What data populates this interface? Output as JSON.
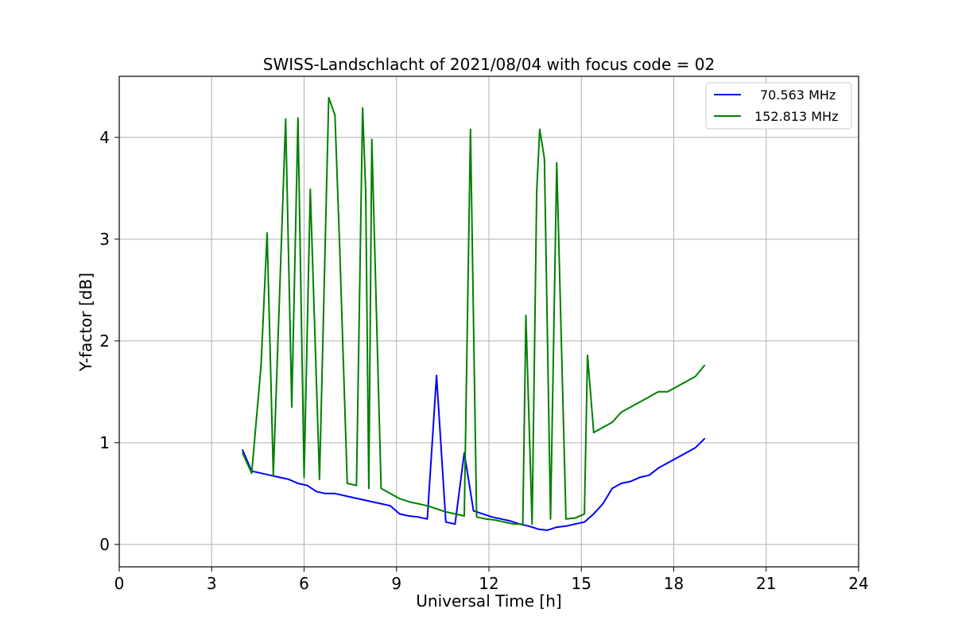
{
  "chart_data": {
    "type": "line",
    "title": "SWISS-Landschlacht of 2021/08/04 with focus code = 02",
    "xlabel": "Universal Time [h]",
    "ylabel": "Y-factor [dB]",
    "xlim": [
      0,
      24
    ],
    "ylim": [
      -0.22,
      4.6
    ],
    "xticks": [
      0,
      3,
      6,
      9,
      12,
      15,
      18,
      21,
      24
    ],
    "yticks": [
      0,
      1,
      2,
      3,
      4
    ],
    "grid": true,
    "legend_position": "top-right",
    "series": [
      {
        "name": "70.563 MHz",
        "color": "#0000ff",
        "x": [
          4.0,
          4.3,
          4.6,
          4.9,
          5.2,
          5.5,
          5.8,
          6.1,
          6.4,
          6.7,
          7.0,
          7.3,
          7.6,
          7.9,
          8.2,
          8.5,
          8.8,
          9.1,
          9.4,
          9.7,
          10.0,
          10.3,
          10.6,
          10.9,
          11.2,
          11.5,
          11.8,
          12.1,
          12.4,
          12.7,
          13.0,
          13.3,
          13.6,
          13.9,
          14.2,
          14.5,
          14.8,
          15.1,
          15.4,
          15.7,
          16.0,
          16.3,
          16.6,
          16.9,
          17.2,
          17.5,
          17.8,
          18.1,
          18.4,
          18.7,
          19.0
        ],
        "values": [
          0.93,
          0.72,
          0.7,
          0.68,
          0.66,
          0.64,
          0.6,
          0.58,
          0.52,
          0.5,
          0.5,
          0.48,
          0.46,
          0.44,
          0.42,
          0.4,
          0.38,
          0.3,
          0.28,
          0.27,
          0.25,
          1.66,
          0.22,
          0.2,
          0.9,
          0.33,
          0.3,
          0.27,
          0.25,
          0.23,
          0.2,
          0.18,
          0.15,
          0.14,
          0.17,
          0.18,
          0.2,
          0.22,
          0.3,
          0.4,
          0.55,
          0.6,
          0.62,
          0.66,
          0.68,
          0.75,
          0.8,
          0.85,
          0.9,
          0.95,
          1.04
        ]
      },
      {
        "name": "152.813 MHz",
        "color": "#008000",
        "x": [
          4.0,
          4.3,
          4.6,
          4.8,
          5.0,
          5.4,
          5.6,
          5.8,
          6.0,
          6.2,
          6.5,
          6.8,
          7.0,
          7.15,
          7.4,
          7.7,
          7.9,
          8.0,
          8.1,
          8.2,
          8.5,
          8.8,
          9.1,
          9.4,
          9.7,
          10.0,
          10.3,
          10.6,
          10.9,
          11.2,
          11.4,
          11.6,
          11.9,
          12.2,
          12.5,
          12.8,
          13.1,
          13.2,
          13.4,
          13.55,
          13.65,
          13.8,
          14.0,
          14.2,
          14.5,
          14.8,
          15.1,
          15.2,
          15.4,
          15.7,
          16.0,
          16.3,
          16.6,
          16.9,
          17.2,
          17.5,
          17.8,
          18.1,
          18.4,
          18.7,
          19.0
        ],
        "values": [
          0.9,
          0.7,
          1.75,
          3.06,
          0.68,
          4.18,
          1.35,
          4.19,
          0.66,
          3.49,
          0.64,
          4.39,
          4.22,
          2.96,
          0.6,
          0.58,
          4.29,
          3.47,
          0.55,
          3.98,
          0.55,
          0.5,
          0.45,
          0.42,
          0.4,
          0.38,
          0.35,
          0.32,
          0.3,
          0.28,
          4.08,
          0.27,
          0.25,
          0.24,
          0.22,
          0.2,
          0.2,
          2.25,
          0.2,
          3.47,
          4.08,
          3.79,
          0.25,
          3.75,
          0.25,
          0.26,
          0.3,
          1.86,
          1.1,
          1.15,
          1.2,
          1.3,
          1.35,
          1.4,
          1.45,
          1.5,
          1.5,
          1.55,
          1.6,
          1.65,
          1.76
        ]
      }
    ]
  }
}
